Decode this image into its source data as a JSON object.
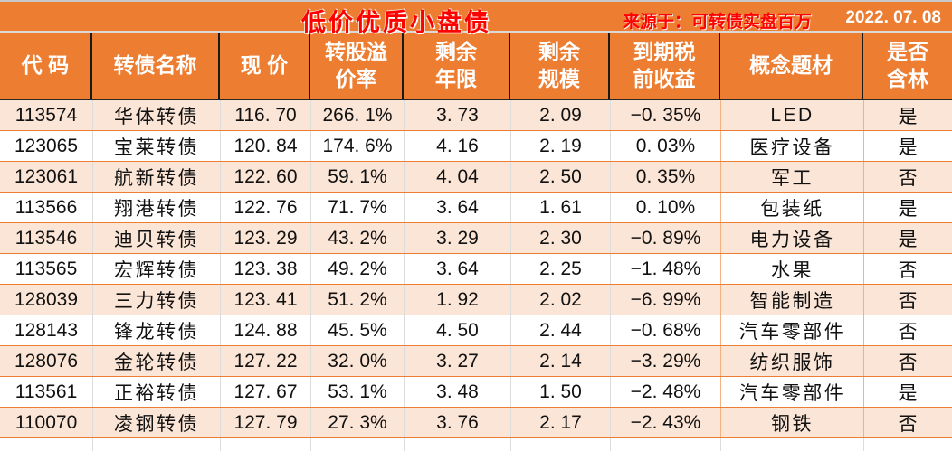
{
  "title": "低价优质小盘债",
  "source_label": "来源于：可转债实盘百万",
  "date": "2022. 07. 08",
  "colors": {
    "header_bg": "#ED7D31",
    "alt_row_bg": "#FBE5D6",
    "title_red": "#FF0000",
    "header_text": "#FFFFFF",
    "row_border_orange": "#ED7D31",
    "cell_border_gray": "#DCDCDC",
    "concept_border_peach": "#F4B183"
  },
  "table": {
    "columns": [
      {
        "key": "code",
        "label": "代 码"
      },
      {
        "key": "name",
        "label": "转债名称"
      },
      {
        "key": "price",
        "label": "现 价"
      },
      {
        "key": "premium",
        "label": "转股溢\n价率"
      },
      {
        "key": "years",
        "label": "剩余\n年限"
      },
      {
        "key": "size",
        "label": "剩余\n规模"
      },
      {
        "key": "yield",
        "label": "到期税\n前收益"
      },
      {
        "key": "concept",
        "label": "概念题材"
      },
      {
        "key": "flag",
        "label": "是否\n含林"
      }
    ],
    "rows": [
      {
        "code": "113574",
        "name": "华体转债",
        "price": "116. 70",
        "premium": "266. 1%",
        "years": "3. 73",
        "size": "2. 09",
        "yield": "−0. 35%",
        "concept": "LED",
        "flag": "是"
      },
      {
        "code": "123065",
        "name": "宝莱转债",
        "price": "120. 84",
        "premium": "174. 6%",
        "years": "4. 16",
        "size": "2. 19",
        "yield": "0. 03%",
        "concept": "医疗设备",
        "flag": "是"
      },
      {
        "code": "123061",
        "name": "航新转债",
        "price": "122. 60",
        "premium": "59. 1%",
        "years": "4. 04",
        "size": "2. 50",
        "yield": "0. 35%",
        "concept": "军工",
        "flag": "否"
      },
      {
        "code": "113566",
        "name": "翔港转债",
        "price": "122. 76",
        "premium": "71. 7%",
        "years": "3. 64",
        "size": "1. 61",
        "yield": "0. 10%",
        "concept": "包装纸",
        "flag": "是"
      },
      {
        "code": "113546",
        "name": "迪贝转债",
        "price": "123. 29",
        "premium": "43. 2%",
        "years": "3. 29",
        "size": "2. 30",
        "yield": "−0. 89%",
        "concept": "电力设备",
        "flag": "是"
      },
      {
        "code": "113565",
        "name": "宏辉转债",
        "price": "123. 38",
        "premium": "49. 2%",
        "years": "3. 64",
        "size": "2. 25",
        "yield": "−1. 48%",
        "concept": "水果",
        "flag": "否"
      },
      {
        "code": "128039",
        "name": "三力转债",
        "price": "123. 41",
        "premium": "51. 2%",
        "years": "1. 92",
        "size": "2. 02",
        "yield": "−6. 99%",
        "concept": "智能制造",
        "flag": "否"
      },
      {
        "code": "128143",
        "name": "锋龙转债",
        "price": "124. 88",
        "premium": "45. 5%",
        "years": "4. 50",
        "size": "2. 44",
        "yield": "−0. 68%",
        "concept": "汽车零部件",
        "flag": "否"
      },
      {
        "code": "128076",
        "name": "金轮转债",
        "price": "127. 22",
        "premium": "32. 0%",
        "years": "3. 27",
        "size": "2. 14",
        "yield": "−3. 29%",
        "concept": "纺织服饰",
        "flag": "否"
      },
      {
        "code": "113561",
        "name": "正裕转债",
        "price": "127. 67",
        "premium": "53. 1%",
        "years": "3. 48",
        "size": "1. 50",
        "yield": "−2. 48%",
        "concept": "汽车零部件",
        "flag": "是"
      },
      {
        "code": "110070",
        "name": "凌钢转债",
        "price": "127. 79",
        "premium": "27. 3%",
        "years": "3. 76",
        "size": "2. 17",
        "yield": "−2. 43%",
        "concept": "钢铁",
        "flag": "否"
      }
    ]
  }
}
